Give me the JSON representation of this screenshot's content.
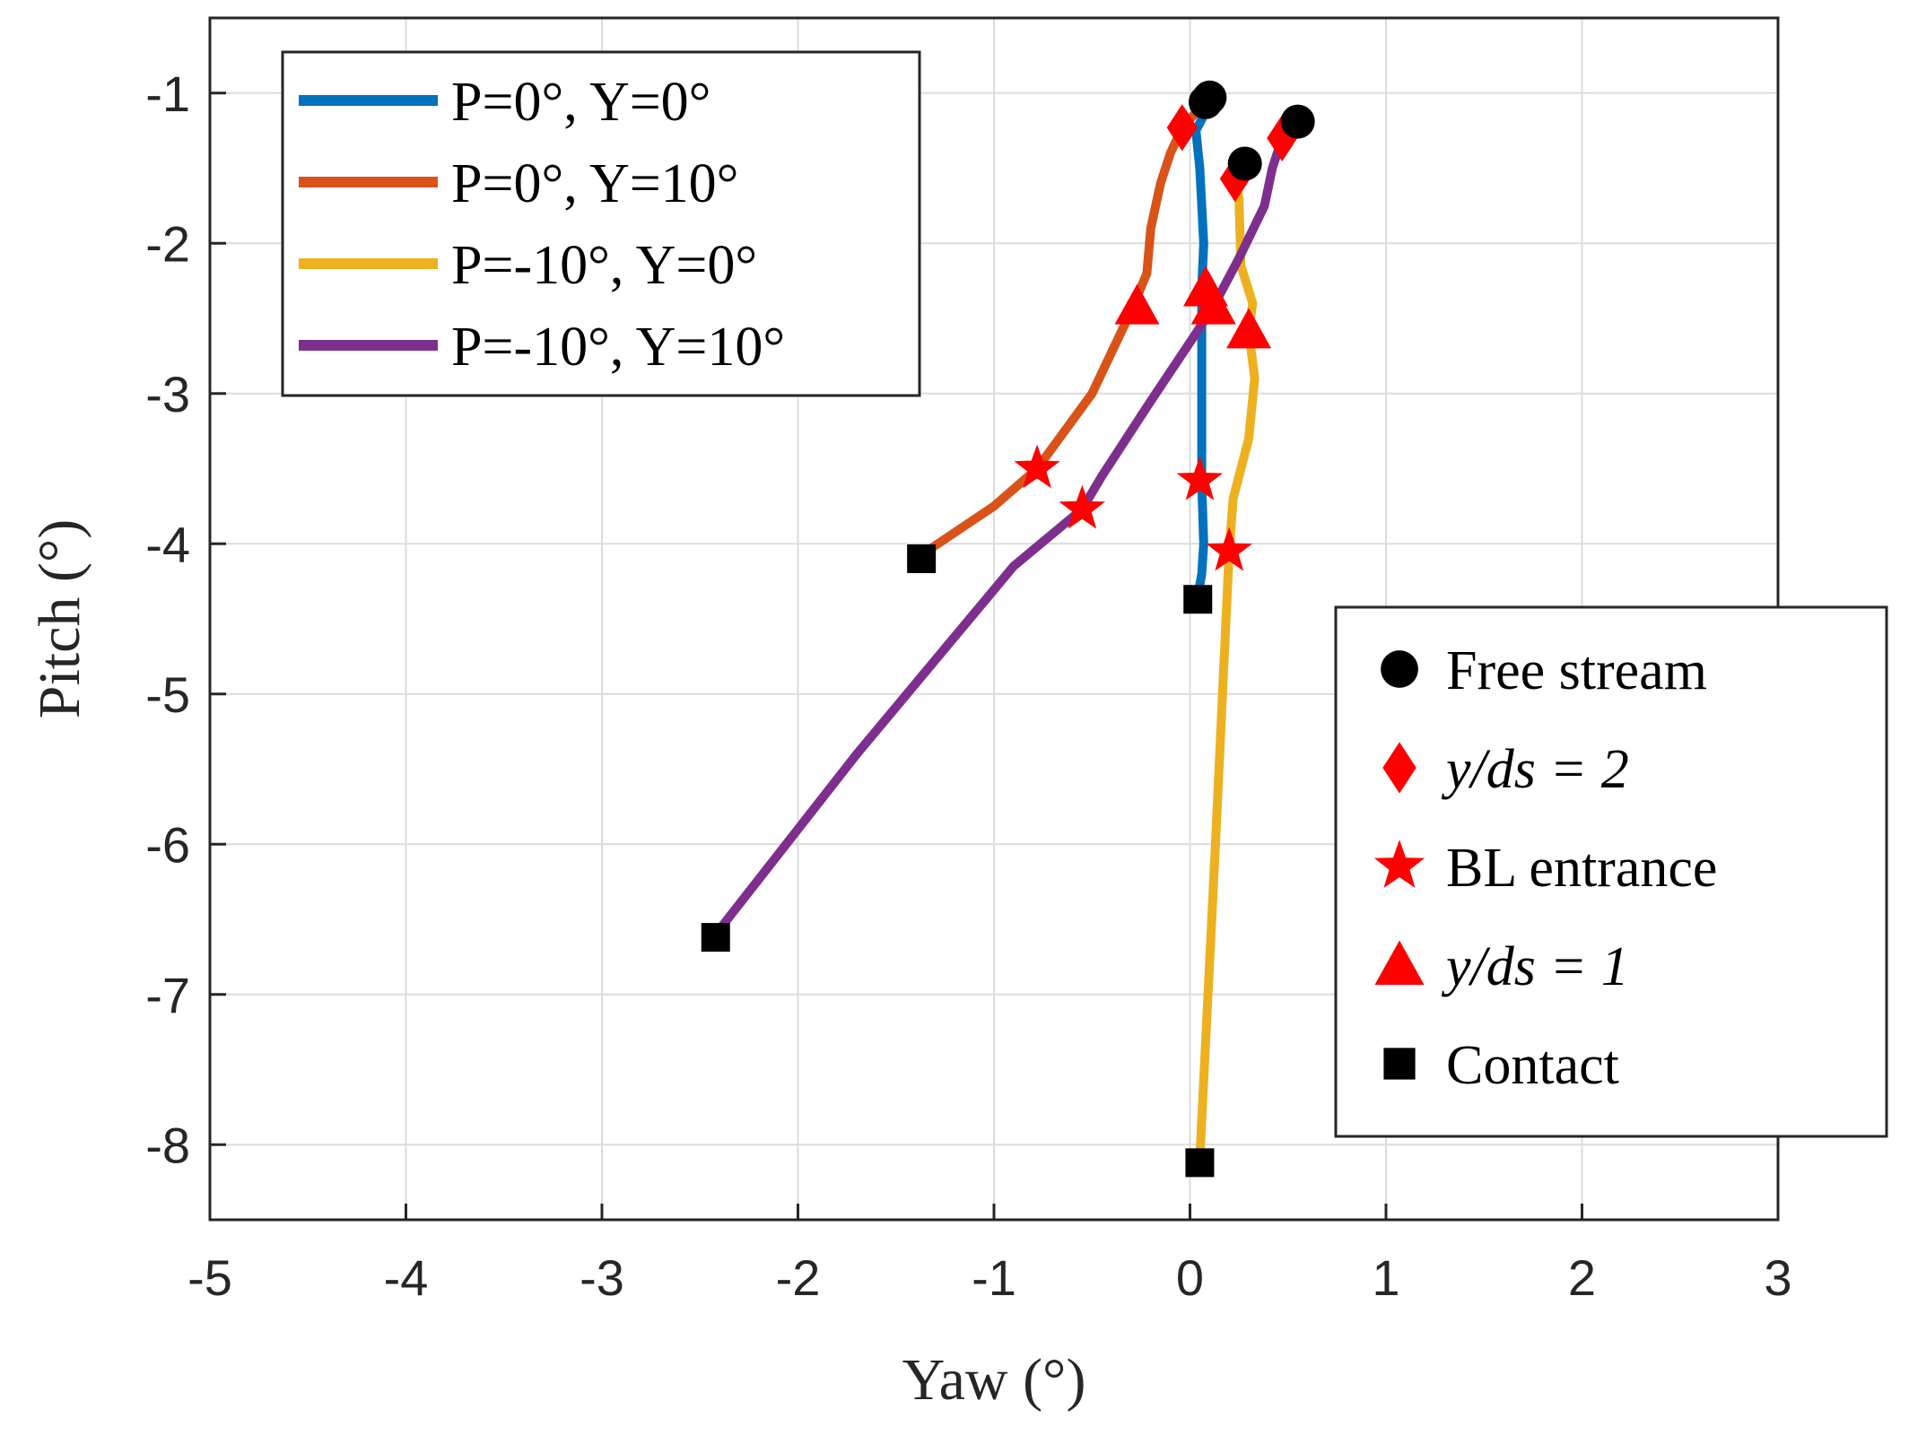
{
  "chart_data": {
    "type": "line",
    "title": "",
    "xlabel": "Yaw (°)",
    "ylabel": "Pitch (°)",
    "xlim": [
      -5,
      3
    ],
    "ylim": [
      -8.5,
      -0.5
    ],
    "grid": true,
    "x_ticks": [
      -5,
      -4,
      -3,
      -2,
      -1,
      0,
      1,
      2,
      3
    ],
    "x_tick_labels": [
      "-5",
      "-4",
      "-3",
      "-2",
      "-1",
      "0",
      "1",
      "2",
      "3"
    ],
    "y_ticks": [
      -1,
      -2,
      -3,
      -4,
      -5,
      -6,
      -7,
      -8
    ],
    "y_tick_labels": [
      "-1",
      "-2",
      "-3",
      "-4",
      "-5",
      "-6",
      "-7",
      "-8"
    ],
    "legend_lines_position": "top-left",
    "legend_markers_position": "right",
    "series": [
      {
        "name": "P=0°, Y=0°",
        "color": "#0072BD",
        "x": [
          0.1,
          0.07,
          0.03,
          0.05,
          0.07,
          0.06,
          0.06,
          0.06,
          0.07,
          0.06,
          0.04
        ],
        "y": [
          -1.05,
          -1.15,
          -1.25,
          -1.5,
          -2.0,
          -2.3,
          -3.0,
          -3.6,
          -4.0,
          -4.2,
          -4.35
        ],
        "free_stream": [
          0.1,
          -1.03
        ],
        "y_ds_2": [
          -0.04,
          -1.23
        ],
        "y_ds_1": [
          0.08,
          -2.3
        ],
        "bl_entrance": [
          0.05,
          -3.58
        ],
        "contact": [
          0.04,
          -4.37
        ]
      },
      {
        "name": "P=0°, Y=10°",
        "color": "#D95319",
        "x": [
          0.08,
          -0.04,
          -0.1,
          -0.15,
          -0.2,
          -0.22,
          -0.3,
          -0.5,
          -0.78,
          -1.0,
          -1.4
        ],
        "y": [
          -1.06,
          -1.23,
          -1.4,
          -1.6,
          -1.9,
          -2.2,
          -2.45,
          -3.0,
          -3.5,
          -3.75,
          -4.1
        ],
        "free_stream": [
          0.08,
          -1.06
        ],
        "y_ds_2": [
          -0.04,
          -1.23
        ],
        "y_ds_1": [
          -0.27,
          -2.42
        ],
        "bl_entrance": [
          -0.78,
          -3.5
        ],
        "contact": [
          -1.37,
          -4.1
        ]
      },
      {
        "name": "P=-10°, Y=0°",
        "color": "#EDB120",
        "x": [
          0.28,
          0.23,
          0.25,
          0.26,
          0.32,
          0.3,
          0.33,
          0.3,
          0.22,
          0.2,
          0.13,
          0.05
        ],
        "y": [
          -1.47,
          -1.57,
          -1.7,
          -2.15,
          -2.4,
          -2.58,
          -2.9,
          -3.3,
          -3.7,
          -4.05,
          -6.0,
          -8.1
        ],
        "free_stream": [
          0.28,
          -1.47
        ],
        "y_ds_2": [
          0.23,
          -1.57
        ],
        "y_ds_1": [
          0.3,
          -2.58
        ],
        "bl_entrance": [
          0.2,
          -4.05
        ],
        "contact": [
          0.05,
          -8.12
        ]
      },
      {
        "name": "P=-10°, Y=10°",
        "color": "#7E2F8E",
        "x": [
          0.55,
          0.47,
          0.42,
          0.38,
          0.25,
          0.12,
          0.03,
          -0.2,
          -0.45,
          -0.55,
          -0.9,
          -1.7,
          -2.42
        ],
        "y": [
          -1.19,
          -1.3,
          -1.5,
          -1.75,
          -2.1,
          -2.42,
          -2.6,
          -3.05,
          -3.55,
          -3.77,
          -4.15,
          -5.4,
          -6.6
        ],
        "free_stream": [
          0.55,
          -1.19
        ],
        "y_ds_2": [
          0.47,
          -1.3
        ],
        "y_ds_1": [
          0.12,
          -2.42
        ],
        "bl_entrance": [
          -0.55,
          -3.77
        ],
        "contact": [
          -2.42,
          -6.62
        ]
      }
    ],
    "marker_legend": [
      {
        "marker": "circle",
        "label": "Free stream"
      },
      {
        "marker": "diamond",
        "label": "y/d_s = 2",
        "text": "y/ds = 2"
      },
      {
        "marker": "star",
        "label": "BL entrance"
      },
      {
        "marker": "triangle",
        "label": "y/d_s = 1",
        "text": "y/ds = 1"
      },
      {
        "marker": "square",
        "label": "Contact"
      }
    ],
    "marker_colors": {
      "red": "#FF0000",
      "black": "#000000"
    }
  }
}
